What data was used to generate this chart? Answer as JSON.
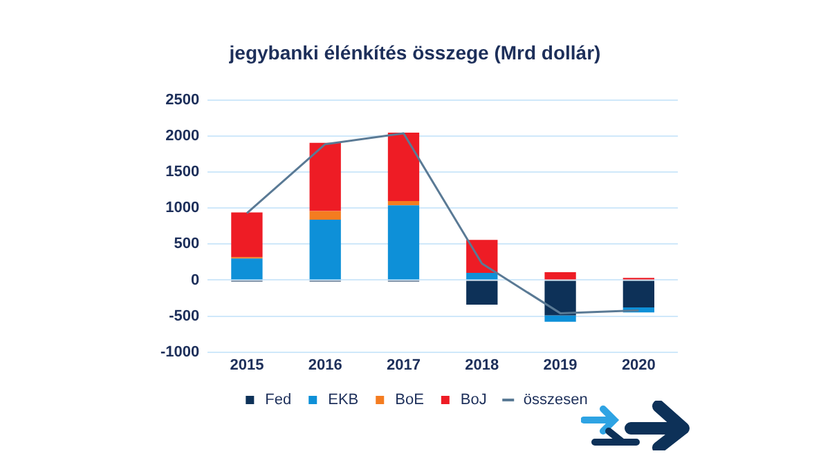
{
  "chart_data": {
    "type": "bar",
    "title": "jegybanki élénkítés összege (Mrd dollár)",
    "categories": [
      "2015",
      "2016",
      "2017",
      "2018",
      "2019",
      "2020"
    ],
    "stacked": true,
    "series": [
      {
        "name": "Fed",
        "color": "#0d3158",
        "values": [
          -20,
          -20,
          -20,
          -340,
          -490,
          -380
        ]
      },
      {
        "name": "EKB",
        "color": "#0e90d8",
        "values": [
          300,
          840,
          1040,
          100,
          -90,
          -70
        ]
      },
      {
        "name": "BoE",
        "color": "#f47c20",
        "values": [
          20,
          120,
          60,
          0,
          10,
          0
        ]
      },
      {
        "name": "BoJ",
        "color": "#ee1c25",
        "values": [
          620,
          950,
          950,
          460,
          100,
          30
        ]
      },
      {
        "name": "összesen",
        "type": "line",
        "color": "#5a7a95",
        "marker": "none",
        "values": [
          930,
          1890,
          2040,
          230,
          -460,
          -420
        ]
      }
    ],
    "ylim": [
      -1000,
      2500
    ],
    "yticks": [
      -1000,
      -500,
      0,
      500,
      1000,
      1500,
      2000,
      2500
    ],
    "grid": "y",
    "legend": "bottom"
  }
}
